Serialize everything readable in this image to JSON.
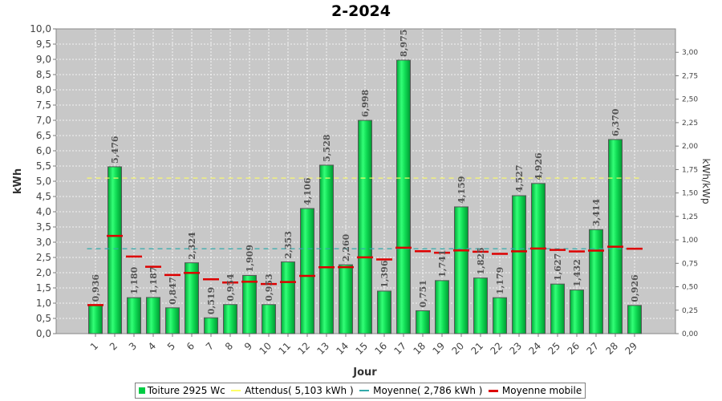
{
  "chart_data": {
    "type": "bar",
    "title": "2-2024",
    "xlabel": "Jour",
    "ylabel": "kWh",
    "ylabel_right": "kWh/kWp",
    "ylim": [
      0,
      10
    ],
    "ylim_right": [
      0,
      3.25
    ],
    "y_ticks": [
      "0,0",
      "0,5",
      "1,0",
      "1,5",
      "2,0",
      "2,5",
      "3,0",
      "3,5",
      "4,0",
      "4,5",
      "5,0",
      "5,5",
      "6,0",
      "6,5",
      "7,0",
      "7,5",
      "8,0",
      "8,5",
      "9,0",
      "9,5",
      "10,0"
    ],
    "y_ticks_right": [
      "0,00",
      "0,25",
      "0,50",
      "0,75",
      "1,00",
      "1,25",
      "1,50",
      "1,75",
      "2,00",
      "2,25",
      "2,50",
      "2,75",
      "3,00"
    ],
    "categories": [
      "1",
      "2",
      "3",
      "4",
      "5",
      "6",
      "7",
      "8",
      "9",
      "10",
      "11",
      "12",
      "13",
      "14",
      "15",
      "16",
      "17",
      "18",
      "19",
      "20",
      "21",
      "22",
      "23",
      "24",
      "25",
      "26",
      "27",
      "28",
      "29"
    ],
    "series": [
      {
        "name": "Toiture 2925 Wc",
        "kind": "bar",
        "color": "#00cc44",
        "values": [
          0.936,
          5.476,
          1.18,
          1.187,
          0.847,
          2.324,
          0.519,
          0.954,
          1.909,
          0.953,
          2.353,
          4.106,
          5.528,
          2.26,
          6.998,
          1.396,
          8.975,
          0.751,
          1.741,
          4.159,
          1.825,
          1.179,
          4.527,
          4.926,
          1.627,
          1.432,
          3.414,
          6.37,
          0.926
        ],
        "labels": [
          "0,936",
          "5,476",
          "1,180",
          "1,187",
          "0,847",
          "2,324",
          "0,519",
          "0,954",
          "1,909",
          "0,953",
          "2,353",
          "4,106",
          "5,528",
          "2,260",
          "6,998",
          "1,396",
          "8,975",
          "0,751",
          "1,741",
          "4,159",
          "1,825",
          "1,179",
          "4,527",
          "4,926",
          "1,627",
          "1,432",
          "3,414",
          "6,370",
          "0,926"
        ]
      },
      {
        "name": "Moyenne mobile",
        "kind": "marker",
        "color": "#dd0000",
        "values": [
          0.936,
          3.206,
          2.531,
          2.195,
          1.925,
          1.992,
          1.782,
          1.678,
          1.704,
          1.629,
          1.695,
          1.896,
          2.176,
          2.182,
          2.503,
          2.434,
          2.819,
          2.704,
          2.653,
          2.729,
          2.686,
          2.617,
          2.7,
          2.792,
          2.746,
          2.696,
          2.723,
          2.853,
          2.786
        ]
      }
    ],
    "reference_lines": [
      {
        "name": "Attendus( 5,103 kWh )",
        "value": 5.103,
        "color": "#ffff66"
      },
      {
        "name": "Moyenne( 2,786 kWh )",
        "value": 2.786,
        "color": "#33aaaa"
      }
    ],
    "legend": {
      "placement": "bottom",
      "items": [
        {
          "label": "Toiture 2925 Wc",
          "color": "#00cc44",
          "shape": "box"
        },
        {
          "label": "Attendus( 5,103 kWh )",
          "color": "#ffff66",
          "shape": "line"
        },
        {
          "label": "Moyenne( 2,786 kWh )",
          "color": "#33aaaa",
          "shape": "line"
        },
        {
          "label": "Moyenne mobile",
          "color": "#dd0000",
          "shape": "line"
        }
      ]
    },
    "grid": true,
    "plot_background": "#c8c8c8"
  }
}
